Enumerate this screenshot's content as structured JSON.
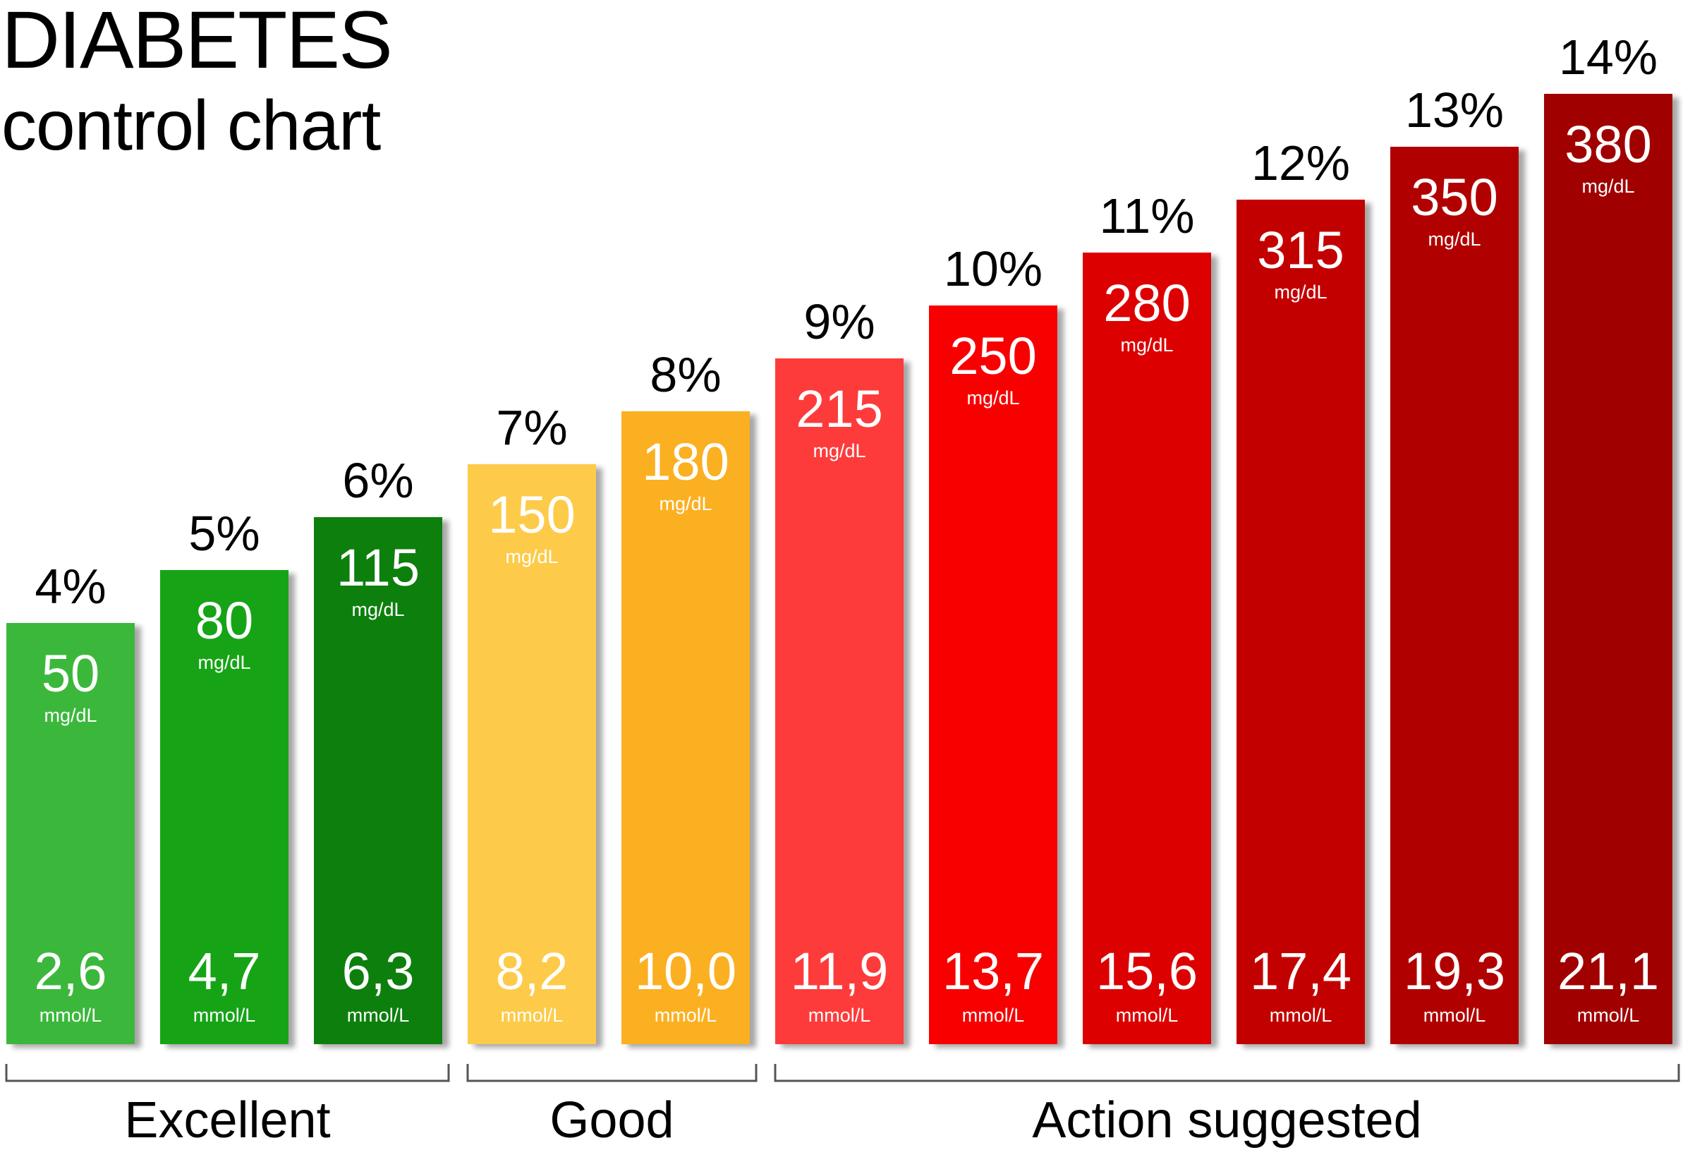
{
  "title": "DIABETES",
  "subtitle": "control chart",
  "chart_data": {
    "type": "bar",
    "title": "DIABETES control chart",
    "categories": [
      "4%",
      "5%",
      "6%",
      "7%",
      "8%",
      "9%",
      "10%",
      "11%",
      "12%",
      "13%",
      "14%"
    ],
    "series": [
      {
        "name": "mg/dL",
        "values": [
          50,
          80,
          115,
          150,
          180,
          215,
          250,
          280,
          315,
          350,
          380
        ]
      },
      {
        "name": "mmol/L",
        "values": [
          "2,6",
          "4,7",
          "6,3",
          "8,2",
          "10,0",
          "11,9",
          "13,7",
          "15,6",
          "17,4",
          "19,3",
          "21,1"
        ]
      }
    ],
    "units": {
      "top": "mg/dL",
      "bottom": "mmol/L"
    },
    "colors": [
      "#3ab83a",
      "#18a418",
      "#0b7f0b",
      "#fdcb4a",
      "#fbb021",
      "#fe3a3a",
      "#f80606",
      "#dd0606",
      "#c30505",
      "#b10303",
      "#a00303"
    ],
    "groups": [
      {
        "label": "Excellent",
        "from": 0,
        "to": 2
      },
      {
        "label": "Good",
        "from": 3,
        "to": 4
      },
      {
        "label": "Action suggested",
        "from": 5,
        "to": 10
      }
    ],
    "grid": false,
    "legend": "none"
  }
}
